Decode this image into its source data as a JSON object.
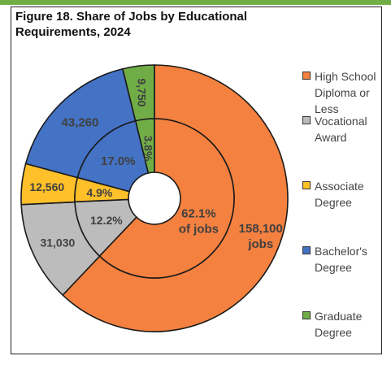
{
  "title_lines": [
    "Figure 18. Share of Jobs by Educational",
    "Requirements, 2024"
  ],
  "colors": {
    "accent_bar": "#70ad47",
    "high_school": "#f4813f",
    "vocational": "#bcbcbc",
    "associate": "#ffc02a",
    "bachelors": "#4472c4",
    "graduate": "#70ad47",
    "stroke": "#1a1a1a"
  },
  "legend": [
    {
      "key": "high_school",
      "lines": [
        "High School",
        "Diploma or",
        "Less"
      ]
    },
    {
      "key": "vocational",
      "lines": [
        "Vocational",
        "Award"
      ]
    },
    {
      "key": "associate",
      "lines": [
        "Associate",
        "Degree"
      ]
    },
    {
      "key": "bachelors",
      "lines": [
        "Bachelor's",
        "Degree"
      ]
    },
    {
      "key": "graduate",
      "lines": [
        "Graduate",
        "Degree"
      ]
    }
  ],
  "chart_data": {
    "type": "pie",
    "title": "Figure 18. Share of Jobs by Educational Requirements, 2024",
    "categories": [
      "High School Diploma or Less",
      "Vocational Award",
      "Associate Degree",
      "Bachelor's Degree",
      "Graduate Degree"
    ],
    "series": [
      {
        "ring": "outer",
        "values": [
          158100,
          31030,
          12560,
          43260,
          9750
        ],
        "labels": [
          "158,100 jobs",
          "31,030",
          "12,560",
          "43,260",
          "9,750"
        ]
      },
      {
        "ring": "inner",
        "values": [
          62.1,
          12.2,
          4.9,
          17.0,
          3.8
        ],
        "labels": [
          "62.1% of jobs",
          "12.2%",
          "4.9%",
          "17.0%",
          "3.8%"
        ]
      }
    ],
    "legend_position": "right"
  }
}
